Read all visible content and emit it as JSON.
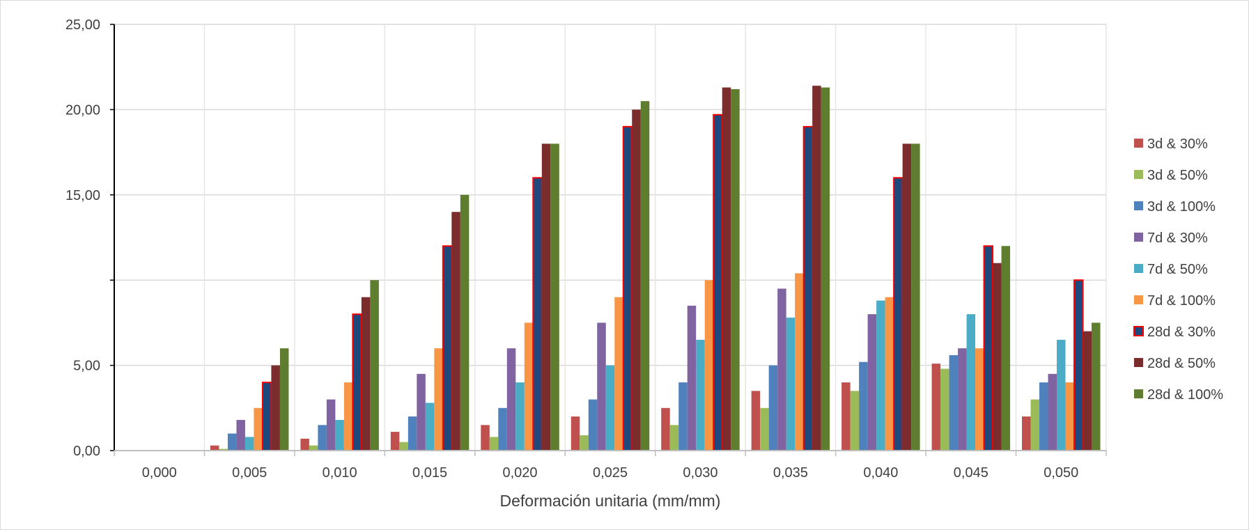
{
  "chart_data": {
    "type": "bar",
    "title": "",
    "xlabel": "Deformación unitaria (mm/mm)",
    "ylabel": "",
    "categories": [
      "0,000",
      "0,005",
      "0,010",
      "0,015",
      "0,020",
      "0,025",
      "0,030",
      "0,035",
      "0,040",
      "0,045",
      "0,050"
    ],
    "ylim": [
      0,
      25
    ],
    "yticks": [
      {
        "value": 0,
        "label": "0,00"
      },
      {
        "value": 5,
        "label": "5,00"
      },
      {
        "value": 10,
        "label": ""
      },
      {
        "value": 15,
        "label": "15,00"
      },
      {
        "value": 20,
        "label": "20,00"
      },
      {
        "value": 25,
        "label": "25,00"
      }
    ],
    "grid": true,
    "legend_position": "right",
    "series": [
      {
        "name": "3d & 30%",
        "color": "#c0504d",
        "values": [
          0,
          0.3,
          0.7,
          1.1,
          1.5,
          2.0,
          2.5,
          3.5,
          4.0,
          5.1,
          2.0
        ]
      },
      {
        "name": "3d & 50%",
        "color": "#9bbb59",
        "values": [
          0,
          0.1,
          0.3,
          0.5,
          0.8,
          0.9,
          1.5,
          2.5,
          3.5,
          4.8,
          3.0
        ]
      },
      {
        "name": "3d & 100%",
        "color": "#4f81bd",
        "values": [
          0,
          1.0,
          1.5,
          2.0,
          2.5,
          3.0,
          4.0,
          5.0,
          5.2,
          5.6,
          4.0
        ]
      },
      {
        "name": "7d & 30%",
        "color": "#8064a2",
        "values": [
          0,
          1.8,
          3.0,
          4.5,
          6.0,
          7.5,
          8.5,
          9.5,
          8.0,
          6.0,
          4.5
        ]
      },
      {
        "name": "7d & 50%",
        "color": "#4bacc6",
        "values": [
          0,
          0.8,
          1.8,
          2.8,
          4.0,
          5.0,
          6.5,
          7.8,
          8.8,
          8.0,
          6.5
        ]
      },
      {
        "name": "7d & 100%",
        "color": "#f79646",
        "values": [
          0,
          2.5,
          4.0,
          6.0,
          7.5,
          9.0,
          10.0,
          10.4,
          9.0,
          6.0,
          4.0
        ]
      },
      {
        "name": "28d & 30%",
        "color": "#1f497d",
        "outline": "#ff0000",
        "values": [
          0,
          4.0,
          8.0,
          12.0,
          16.0,
          19.0,
          19.7,
          19.0,
          16.0,
          12.0,
          10.0
        ]
      },
      {
        "name": "28d & 50%",
        "color": "#7b2c2c",
        "values": [
          0,
          5.0,
          9.0,
          14.0,
          18.0,
          20.0,
          21.3,
          21.4,
          18.0,
          11.0,
          7.0
        ]
      },
      {
        "name": "28d & 100%",
        "color": "#5e7d2e",
        "values": [
          0,
          6.0,
          10.0,
          15.0,
          18.0,
          20.5,
          21.2,
          21.3,
          18.0,
          12.0,
          7.5
        ]
      }
    ]
  }
}
